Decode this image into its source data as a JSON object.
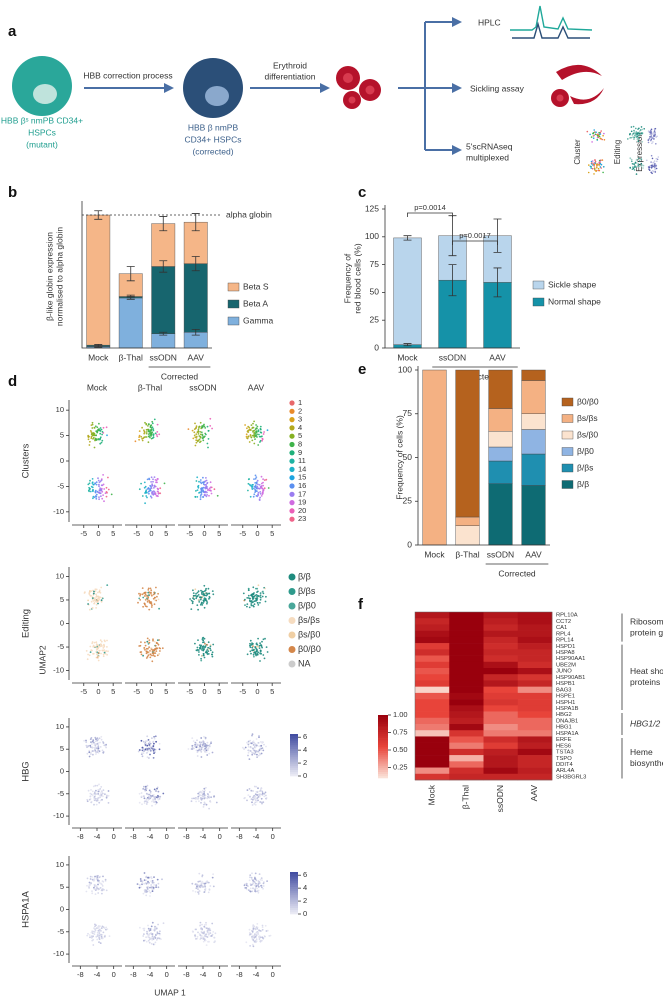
{
  "schematic": {
    "label": "a",
    "start": [
      "HBB βˢ nmPB CD34+",
      "HSPCs",
      "(mutant)"
    ],
    "step1": "HBB correction process",
    "corrected": [
      "HBB β nmPB",
      "CD34+ HSPCs",
      "(corrected)"
    ],
    "step2": [
      "Erythroid",
      "differentiation"
    ],
    "outputs": [
      "HPLC",
      "Sickling assay"
    ],
    "sequencing": [
      "5'scRNAseq",
      "multiplexed"
    ],
    "mini_umap": [
      "Cluster",
      "Editing",
      "Expression"
    ]
  },
  "chart_data": [
    {
      "type": "stacked-bar",
      "label": "b",
      "ylabel": [
        "β-like globin expression",
        "normalised to alpha globin"
      ],
      "categories": [
        "Mock",
        "β-Thal",
        "ssODN",
        "AAV"
      ],
      "group_label": "Corrected",
      "group_categories": [
        "ssODN",
        "AAV"
      ],
      "ylim": [
        0,
        1
      ],
      "reference": {
        "value": 0.93,
        "label": "alpha globin"
      },
      "series": [
        {
          "name": "Gamma",
          "color": "#7fb0dd",
          "values": [
            0.01,
            0.35,
            0.1,
            0.11
          ],
          "errors": [
            0.005,
            0.01,
            0.01,
            0.02
          ]
        },
        {
          "name": "Beta A",
          "color": "#17656e",
          "values": [
            0.01,
            0.01,
            0.47,
            0.48
          ],
          "errors": [
            0.005,
            0.01,
            0.04,
            0.05
          ]
        },
        {
          "name": "Beta S",
          "color": "#f5b688",
          "values": [
            0.91,
            0.16,
            0.3,
            0.29
          ],
          "errors": [
            0.03,
            0.05,
            0.05,
            0.06
          ]
        }
      ]
    },
    {
      "type": "stacked-bar",
      "label": "c",
      "ylabel": [
        "Frequency of",
        "red blood cells (%)"
      ],
      "categories": [
        "Mock",
        "ssODN",
        "AAV"
      ],
      "group_label": "Corrected",
      "group_categories": [
        "ssODN",
        "AAV"
      ],
      "ylim": [
        0,
        125
      ],
      "yticks": [
        0,
        25,
        50,
        75,
        100,
        125
      ],
      "series": [
        {
          "name": "Normal shape",
          "color": "#1592a8",
          "values": [
            3,
            61,
            59
          ],
          "errors": [
            1,
            14,
            13
          ]
        },
        {
          "name": "Sickle shape",
          "color": "#b9d5ec",
          "values": [
            96,
            40,
            42
          ],
          "errors": [
            2,
            18,
            15
          ]
        }
      ],
      "annotations": [
        {
          "label": "p=0.0014",
          "between": [
            "Mock",
            "ssODN"
          ]
        },
        {
          "label": "p=0.0017",
          "between": [
            "ssODN",
            "AAV"
          ]
        }
      ]
    },
    {
      "type": "stacked-bar",
      "label": "e",
      "ylabel": "Frequency of cells (%)",
      "categories": [
        "Mock",
        "β-Thal",
        "ssODN",
        "AAV"
      ],
      "group_label": "Corrected",
      "group_categories": [
        "ssODN",
        "AAV"
      ],
      "ylim": [
        0,
        100
      ],
      "yticks": [
        0,
        25,
        50,
        75,
        100
      ],
      "series": [
        {
          "name": "β/β",
          "color": "#0e6b73",
          "values": [
            0,
            0,
            35,
            34
          ]
        },
        {
          "name": "β/βs",
          "color": "#1f8fb0",
          "values": [
            0,
            0,
            13,
            18
          ]
        },
        {
          "name": "β/β0",
          "color": "#8fb4e3",
          "values": [
            0,
            0,
            8,
            14
          ]
        },
        {
          "name": "βs/β0",
          "color": "#fbe3cf",
          "values": [
            0,
            11,
            9,
            9
          ]
        },
        {
          "name": "βs/βs",
          "color": "#f4b183",
          "values": [
            100,
            5,
            13,
            19
          ]
        },
        {
          "name": "β0/β0",
          "color": "#b5621e",
          "values": [
            0,
            84,
            22,
            6
          ]
        }
      ]
    },
    {
      "type": "heatmap",
      "label": "f",
      "columns": [
        "Mock",
        "β-Thal",
        "ssODN",
        "AAV"
      ],
      "rows": [
        "RPL10A",
        "CCT2",
        "CA1",
        "RPL4",
        "RPL14",
        "HSPD1",
        "HSPA8",
        "HSP90AA1",
        "UBE2M",
        "JUNO",
        "HSP90AB1",
        "HSPB1",
        "BAG3",
        "HSPE1",
        "HSPH1",
        "HSPA1B",
        "HBG2",
        "DNAJB1",
        "HBG1",
        "HSPA1A",
        "ERFE",
        "HES6",
        "TSTA3",
        "TSPO",
        "DDIT4",
        "ARL4A",
        "SH3BGRL3"
      ],
      "values": [
        [
          0.85,
          1.0,
          0.85,
          0.9
        ],
        [
          0.75,
          1.0,
          0.8,
          0.9
        ],
        [
          0.8,
          1.0,
          0.75,
          0.85
        ],
        [
          0.9,
          1.0,
          0.85,
          0.85
        ],
        [
          0.95,
          1.0,
          0.75,
          0.9
        ],
        [
          0.6,
          1.0,
          0.7,
          0.8
        ],
        [
          0.7,
          1.0,
          0.75,
          0.75
        ],
        [
          0.5,
          1.0,
          0.7,
          0.75
        ],
        [
          0.6,
          1.0,
          0.9,
          0.7
        ],
        [
          0.5,
          1.0,
          1.0,
          0.9
        ],
        [
          0.55,
          1.0,
          0.75,
          0.65
        ],
        [
          0.6,
          1.0,
          0.85,
          0.75
        ],
        [
          0.15,
          1.0,
          0.55,
          0.35
        ],
        [
          0.5,
          0.95,
          0.6,
          0.6
        ],
        [
          0.55,
          1.0,
          0.65,
          0.6
        ],
        [
          0.55,
          0.9,
          0.55,
          0.6
        ],
        [
          0.55,
          0.85,
          0.45,
          0.55
        ],
        [
          0.45,
          0.8,
          0.45,
          0.45
        ],
        [
          0.4,
          0.95,
          0.35,
          0.45
        ],
        [
          0.2,
          0.65,
          0.4,
          0.4
        ],
        [
          1.0,
          0.5,
          0.7,
          0.85
        ],
        [
          1.0,
          0.4,
          0.6,
          0.8
        ],
        [
          1.0,
          0.7,
          0.8,
          0.95
        ],
        [
          1.0,
          0.25,
          0.85,
          0.75
        ],
        [
          1.0,
          0.45,
          0.85,
          0.75
        ],
        [
          0.35,
          0.7,
          0.95,
          0.8
        ],
        [
          0.65,
          0.75,
          0.75,
          0.75
        ]
      ],
      "groups": [
        {
          "label": [
            "Ribosomal",
            "protein genes"
          ],
          "first": "RPL10A",
          "last": "RPL14"
        },
        {
          "label": [
            "Heat shock",
            "proteins (HSP)"
          ],
          "first": "HSPD1",
          "last": "HSPA1B"
        },
        {
          "label": [
            "HBG1/2"
          ],
          "first": "HBG2",
          "last": "HSPA1A",
          "italic": true
        },
        {
          "label": [
            "Heme",
            "biosynthesis"
          ],
          "first": "ERFE",
          "last": "SH3BGRL3"
        }
      ],
      "colors": [
        "#fbe6dc",
        "#e8443a",
        "#99000d"
      ],
      "clim": [
        0.1,
        1.0
      ],
      "cticks": [
        {
          "value": 1.0,
          "label": "1.00"
        },
        {
          "value": 0.75,
          "label": "0.75"
        },
        {
          "value": 0.5,
          "label": "0.50"
        },
        {
          "value": 0.25,
          "label": "0.25"
        }
      ]
    }
  ],
  "umap": {
    "label": "d",
    "columns": [
      "Mock",
      "β-Thal",
      "ssODN",
      "AAV"
    ],
    "ylabel": "UMAP2",
    "xlabel": "UMAP 1",
    "rows": [
      {
        "name": "Clusters",
        "xlim": [
          -9,
          8
        ],
        "xticks": [
          -5,
          0,
          5
        ],
        "ylim": [
          -12,
          12
        ],
        "yticks": [
          10,
          5,
          0,
          -5,
          -10
        ],
        "legend": [
          {
            "name": "1",
            "color": "#e8686b"
          },
          {
            "name": "2",
            "color": "#e98a2a"
          },
          {
            "name": "3",
            "color": "#d9a21b"
          },
          {
            "name": "4",
            "color": "#b3a91c"
          },
          {
            "name": "5",
            "color": "#85b022"
          },
          {
            "name": "8",
            "color": "#3fb34a"
          },
          {
            "name": "9",
            "color": "#1fb07a"
          },
          {
            "name": "11",
            "color": "#1fb3a3"
          },
          {
            "name": "14",
            "color": "#1eb2c8"
          },
          {
            "name": "15",
            "color": "#1ea4e0"
          },
          {
            "name": "16",
            "color": "#5a8ff0"
          },
          {
            "name": "17",
            "color": "#9a7cf0"
          },
          {
            "name": "19",
            "color": "#cf6be0"
          },
          {
            "name": "20",
            "color": "#ea5fb8"
          },
          {
            "name": "23",
            "color": "#f0638a"
          }
        ]
      },
      {
        "name": "Editing",
        "xlim": [
          -9,
          8
        ],
        "xticks": [
          -5,
          0,
          5
        ],
        "ylim": [
          -12,
          12
        ],
        "yticks": [
          10,
          5,
          0,
          -5,
          -10
        ],
        "legend": [
          {
            "name": "β/β",
            "color": "#1e8b7e"
          },
          {
            "name": "β/βs",
            "color": "#2e9a8c"
          },
          {
            "name": "β/β0",
            "color": "#4aa79a"
          },
          {
            "name": "βs/βs",
            "color": "#f6dcc0"
          },
          {
            "name": "βs/β0",
            "color": "#f0cfa4"
          },
          {
            "name": "β0/β0",
            "color": "#d4874a"
          },
          {
            "name": "NA",
            "color": "#cccccc"
          }
        ]
      },
      {
        "name": "HBG",
        "xlim": [
          -10,
          2
        ],
        "xticks": [
          -8,
          -4,
          0
        ],
        "ylim": [
          -12,
          12
        ],
        "yticks": [
          10,
          5,
          0,
          -5,
          -10
        ],
        "colorbar": {
          "lim": [
            0,
            6.5
          ],
          "ticks": [
            6,
            4,
            2,
            0
          ],
          "colors": [
            "#eeeef6",
            "#3f4aa0"
          ]
        }
      },
      {
        "name": "HSPA1A",
        "xlim": [
          -10,
          2
        ],
        "xticks": [
          -8,
          -4,
          0
        ],
        "ylim": [
          -12,
          12
        ],
        "yticks": [
          10,
          5,
          0,
          -5,
          -10
        ],
        "colorbar": {
          "lim": [
            0,
            6.5
          ],
          "ticks": [
            6,
            4,
            2,
            0
          ],
          "colors": [
            "#eeeef6",
            "#3f4aa0"
          ]
        }
      }
    ]
  }
}
